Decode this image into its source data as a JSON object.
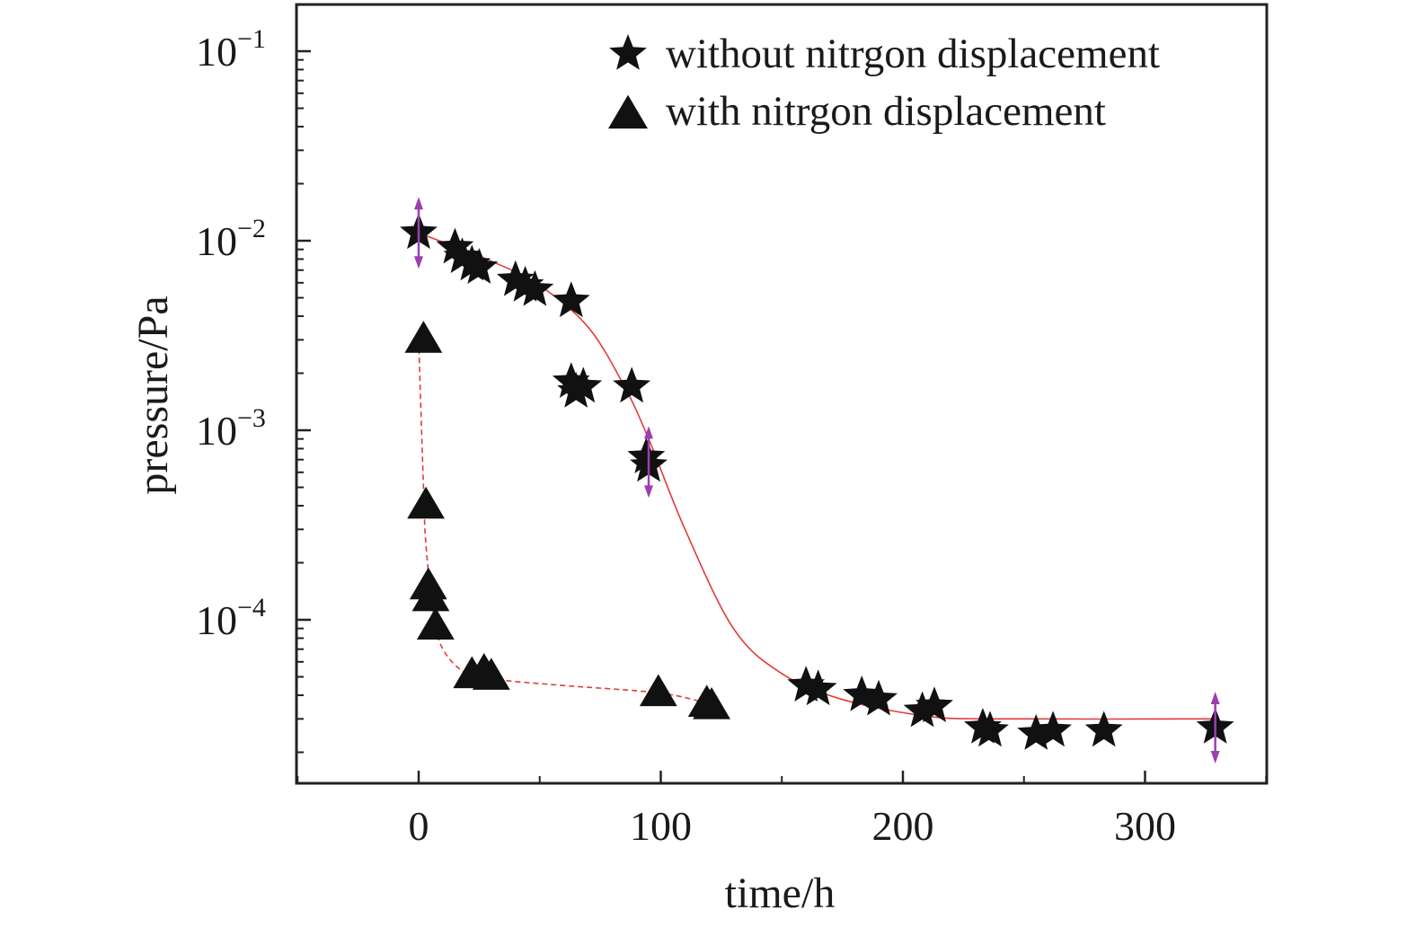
{
  "chart_data": {
    "type": "scatter",
    "xlabel": "time/h",
    "ylabel": "pressure/Pa",
    "xlim": [
      -50,
      350
    ],
    "ylim": [
      1.5e-05,
      0.15
    ],
    "y_scale": "log",
    "x_ticks": [
      0,
      100,
      200,
      300
    ],
    "x_tick_labels": [
      "0",
      "100",
      "200",
      "300"
    ],
    "y_ticks": [
      {
        "value": 0.1,
        "base": "10",
        "exp": "−1"
      },
      {
        "value": 0.01,
        "base": "10",
        "exp": "−2"
      },
      {
        "value": 0.001,
        "base": "10",
        "exp": "−3"
      },
      {
        "value": 0.0001,
        "base": "10",
        "exp": "−4"
      }
    ],
    "grid": false,
    "legend_position": "top-right",
    "series": [
      {
        "name": "without nitrgon displacement",
        "marker": "star",
        "color": "#111111",
        "points": [
          {
            "x": 0,
            "y": 0.011
          },
          {
            "x": 15,
            "y": 0.0092
          },
          {
            "x": 18,
            "y": 0.0082
          },
          {
            "x": 22,
            "y": 0.0075
          },
          {
            "x": 25,
            "y": 0.0072
          },
          {
            "x": 40,
            "y": 0.0062
          },
          {
            "x": 44,
            "y": 0.0058
          },
          {
            "x": 48,
            "y": 0.0055
          },
          {
            "x": 63,
            "y": 0.0048
          },
          {
            "x": 63,
            "y": 0.0018
          },
          {
            "x": 65,
            "y": 0.0016
          },
          {
            "x": 68,
            "y": 0.0017
          },
          {
            "x": 88,
            "y": 0.0017
          },
          {
            "x": 94,
            "y": 0.00072
          },
          {
            "x": 95,
            "y": 0.00065
          },
          {
            "x": 160,
            "y": 4.5e-05
          },
          {
            "x": 165,
            "y": 4.3e-05
          },
          {
            "x": 183,
            "y": 4e-05
          },
          {
            "x": 190,
            "y": 3.8e-05
          },
          {
            "x": 208,
            "y": 3.3e-05
          },
          {
            "x": 213,
            "y": 3.5e-05
          },
          {
            "x": 233,
            "y": 2.7e-05
          },
          {
            "x": 236,
            "y": 2.6e-05
          },
          {
            "x": 255,
            "y": 2.5e-05
          },
          {
            "x": 262,
            "y": 2.6e-05
          },
          {
            "x": 283,
            "y": 2.6e-05
          },
          {
            "x": 329,
            "y": 2.7e-05
          }
        ],
        "error_points": [
          {
            "x": 0,
            "y": 0.011
          },
          {
            "x": 95,
            "y": 0.00068
          },
          {
            "x": 329,
            "y": 2.7e-05
          }
        ],
        "fit": {
          "style": "solid",
          "color": "#e23b3b",
          "points": [
            {
              "x": 0,
              "y": 0.011
            },
            {
              "x": 30,
              "y": 0.0078
            },
            {
              "x": 50,
              "y": 0.0058
            },
            {
              "x": 70,
              "y": 0.0035
            },
            {
              "x": 85,
              "y": 0.0017
            },
            {
              "x": 95,
              "y": 0.0009
            },
            {
              "x": 110,
              "y": 0.0003
            },
            {
              "x": 130,
              "y": 9e-05
            },
            {
              "x": 150,
              "y": 5.2e-05
            },
            {
              "x": 175,
              "y": 3.8e-05
            },
            {
              "x": 210,
              "y": 3.1e-05
            },
            {
              "x": 240,
              "y": 3e-05
            },
            {
              "x": 329,
              "y": 3e-05
            }
          ]
        }
      },
      {
        "name": "with nitrgon displacement",
        "marker": "triangle",
        "color": "#111111",
        "points": [
          {
            "x": 2,
            "y": 0.003
          },
          {
            "x": 3,
            "y": 0.0004
          },
          {
            "x": 4,
            "y": 0.00015
          },
          {
            "x": 5,
            "y": 0.00013
          },
          {
            "x": 7,
            "y": 9.2e-05
          },
          {
            "x": 22,
            "y": 5.1e-05
          },
          {
            "x": 27,
            "y": 5.3e-05
          },
          {
            "x": 30,
            "y": 5e-05
          },
          {
            "x": 99,
            "y": 4.1e-05
          },
          {
            "x": 119,
            "y": 3.6e-05
          },
          {
            "x": 121,
            "y": 3.5e-05
          }
        ],
        "fit": {
          "style": "dashed",
          "color": "#e23b3b",
          "points": [
            {
              "x": 0,
              "y": 0.003
            },
            {
              "x": 2,
              "y": 0.0005
            },
            {
              "x": 3,
              "y": 0.00025
            },
            {
              "x": 6,
              "y": 0.00011
            },
            {
              "x": 10,
              "y": 7e-05
            },
            {
              "x": 20,
              "y": 5.2e-05
            },
            {
              "x": 35,
              "y": 4.8e-05
            },
            {
              "x": 60,
              "y": 4.5e-05
            },
            {
              "x": 100,
              "y": 4.1e-05
            },
            {
              "x": 120,
              "y": 3.6e-05
            }
          ]
        }
      }
    ]
  }
}
